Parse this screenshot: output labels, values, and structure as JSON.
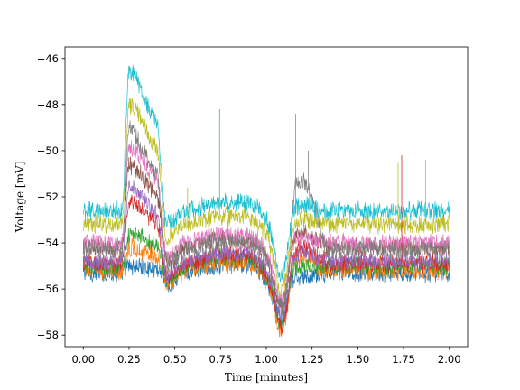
{
  "chart_data": {
    "type": "line",
    "xlabel": "Time [minutes]",
    "ylabel": "Voltage [mV]",
    "xlim": [
      -0.1,
      2.1
    ],
    "ylim": [
      -58.5,
      -45.5
    ],
    "x_ticks": [
      0.0,
      0.25,
      0.5,
      0.75,
      1.0,
      1.25,
      1.5,
      1.75,
      2.0
    ],
    "x_tick_labels": [
      "0.00",
      "0.25",
      "0.50",
      "0.75",
      "1.00",
      "1.25",
      "1.50",
      "1.75",
      "2.00"
    ],
    "y_ticks": [
      -46,
      -48,
      -50,
      -52,
      -54,
      -56,
      -58
    ],
    "y_tick_labels": [
      "−46",
      "−48",
      "−50",
      "−52",
      "−54",
      "−56",
      "−58"
    ],
    "grid": false,
    "legend": false,
    "noise_note": "Each trace is a noisy membrane-voltage recording; values below are the smoothed trend levels read off the plot.",
    "series": [
      {
        "color": "#1f77b4",
        "baseline": -55.3,
        "peak": -55.0,
        "spike_ext": -55.5,
        "trough": -56.8,
        "noise": 0.35
      },
      {
        "color": "#ff7f0e",
        "baseline": -55.2,
        "peak": -54.2,
        "spike_ext": -54.7,
        "trough": -57.4,
        "noise": 0.35
      },
      {
        "color": "#2ca02c",
        "baseline": -55.0,
        "peak": -53.6,
        "spike_ext": -55.0,
        "trough": -57.0,
        "noise": 0.35
      },
      {
        "color": "#d62728",
        "baseline": -54.9,
        "peak": -52.2,
        "spike_ext": -54.2,
        "trough": -57.2,
        "noise": 0.35
      },
      {
        "color": "#9467bd",
        "baseline": -54.8,
        "peak": -51.5,
        "spike_ext": -54.4,
        "trough": -56.6,
        "noise": 0.35
      },
      {
        "color": "#8c564b",
        "baseline": -54.2,
        "peak": -50.6,
        "spike_ext": -53.6,
        "trough": -56.2,
        "noise": 0.35
      },
      {
        "color": "#e377c2",
        "baseline": -54.0,
        "peak": -49.8,
        "spike_ext": -53.8,
        "trough": -56.0,
        "noise": 0.35
      },
      {
        "color": "#7f7f7f",
        "baseline": -54.3,
        "peak": -49.1,
        "spike_ext": -51.3,
        "trough": -56.3,
        "noise": 0.35
      },
      {
        "color": "#bcbd22",
        "baseline": -53.2,
        "peak": -48.0,
        "spike_ext": -53.0,
        "trough": -55.6,
        "noise": 0.35
      },
      {
        "color": "#17becf",
        "baseline": -52.6,
        "peak": -46.6,
        "spike_ext": -52.4,
        "trough": -55.0,
        "noise": 0.35
      }
    ],
    "spikes": [
      {
        "series": 9,
        "x": 0.745,
        "y": -48.2
      },
      {
        "series": 8,
        "x": 0.745,
        "y": -48.6
      },
      {
        "series": 9,
        "x": 1.16,
        "y": -48.4
      },
      {
        "series": 8,
        "x": 1.72,
        "y": -50.5
      },
      {
        "series": 3,
        "x": 1.74,
        "y": -50.2
      },
      {
        "series": 8,
        "x": 1.87,
        "y": -50.4
      },
      {
        "series": 7,
        "x": 1.23,
        "y": -50.0
      },
      {
        "series": 5,
        "x": 1.55,
        "y": -51.8
      },
      {
        "series": 8,
        "x": 0.57,
        "y": -51.6
      }
    ]
  }
}
